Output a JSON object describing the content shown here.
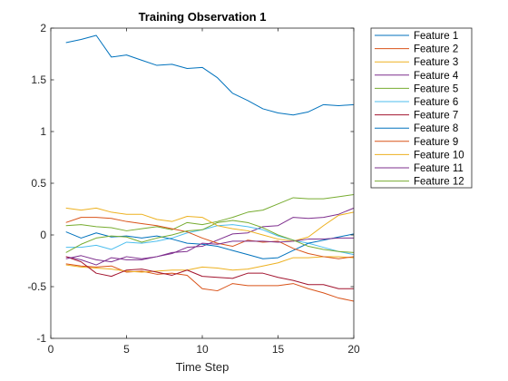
{
  "chart_data": {
    "type": "line",
    "title": "Training Observation 1",
    "xlabel": "Time Step",
    "ylabel": "",
    "xlim": [
      0,
      20
    ],
    "ylim": [
      -1,
      2
    ],
    "xticks": [
      0,
      5,
      10,
      15,
      20
    ],
    "yticks": [
      -1,
      -0.5,
      0,
      0.5,
      1,
      1.5,
      2
    ],
    "xtick_labels": [
      "0",
      "5",
      "10",
      "15",
      "20"
    ],
    "ytick_labels": [
      "-1",
      "-0.5",
      "0",
      "0.5",
      "1",
      "1.5",
      "2"
    ],
    "grid": false,
    "legend_position": "outside-right",
    "x": [
      1,
      2,
      3,
      4,
      5,
      6,
      7,
      8,
      9,
      10,
      11,
      12,
      13,
      14,
      15,
      16,
      17,
      18,
      19,
      20
    ],
    "series": [
      {
        "name": "Feature 1",
        "color": "#0072BD",
        "values": [
          1.86,
          1.89,
          1.93,
          1.72,
          1.74,
          1.69,
          1.64,
          1.65,
          1.61,
          1.62,
          1.52,
          1.37,
          1.3,
          1.22,
          1.18,
          1.16,
          1.19,
          1.26,
          1.25,
          1.26
        ]
      },
      {
        "name": "Feature 2",
        "color": "#D95319",
        "values": [
          -0.28,
          -0.3,
          -0.31,
          -0.3,
          -0.36,
          -0.35,
          -0.38,
          -0.37,
          -0.39,
          -0.52,
          -0.54,
          -0.47,
          -0.49,
          -0.49,
          -0.49,
          -0.47,
          -0.52,
          -0.56,
          -0.61,
          -0.64
        ]
      },
      {
        "name": "Feature 3",
        "color": "#EDB120",
        "values": [
          -0.29,
          -0.31,
          -0.32,
          -0.33,
          -0.35,
          -0.36,
          -0.35,
          -0.34,
          -0.34,
          -0.31,
          -0.32,
          -0.34,
          -0.33,
          -0.3,
          -0.27,
          -0.22,
          -0.22,
          -0.21,
          -0.21,
          -0.22
        ]
      },
      {
        "name": "Feature 4",
        "color": "#7E2F8E",
        "values": [
          -0.21,
          -0.24,
          -0.29,
          -0.22,
          -0.24,
          -0.24,
          -0.21,
          -0.18,
          -0.12,
          -0.11,
          -0.05,
          0.01,
          0.02,
          0.08,
          0.09,
          0.17,
          0.16,
          0.17,
          0.2,
          0.26
        ]
      },
      {
        "name": "Feature 5",
        "color": "#77AC30",
        "values": [
          0.09,
          0.1,
          0.08,
          0.07,
          0.04,
          0.06,
          0.08,
          0.05,
          0.12,
          0.1,
          0.13,
          0.17,
          0.22,
          0.24,
          0.3,
          0.36,
          0.35,
          0.35,
          0.37,
          0.39
        ]
      },
      {
        "name": "Feature 6",
        "color": "#4DBEEE",
        "values": [
          -0.12,
          -0.12,
          -0.1,
          -0.14,
          -0.07,
          -0.08,
          -0.06,
          -0.03,
          0.02,
          0.05,
          0.09,
          0.1,
          0.08,
          0.05,
          -0.01,
          -0.05,
          -0.08,
          -0.12,
          -0.16,
          -0.19
        ]
      },
      {
        "name": "Feature 7",
        "color": "#A2142F",
        "values": [
          -0.21,
          -0.26,
          -0.37,
          -0.4,
          -0.34,
          -0.33,
          -0.36,
          -0.39,
          -0.34,
          -0.4,
          -0.41,
          -0.42,
          -0.37,
          -0.37,
          -0.41,
          -0.44,
          -0.48,
          -0.48,
          -0.52,
          -0.52
        ]
      },
      {
        "name": "Feature 8",
        "color": "#0072BD",
        "values": [
          0.03,
          -0.03,
          0.02,
          -0.02,
          -0.01,
          -0.03,
          -0.01,
          -0.04,
          -0.08,
          -0.09,
          -0.11,
          -0.15,
          -0.19,
          -0.23,
          -0.22,
          -0.15,
          -0.08,
          -0.05,
          -0.02,
          0.01
        ]
      },
      {
        "name": "Feature 9",
        "color": "#D95319",
        "values": [
          0.12,
          0.17,
          0.17,
          0.16,
          0.13,
          0.11,
          0.09,
          0.06,
          0.03,
          -0.03,
          -0.08,
          -0.11,
          -0.05,
          -0.07,
          -0.06,
          -0.13,
          -0.18,
          -0.21,
          -0.23,
          -0.21
        ]
      },
      {
        "name": "Feature 10",
        "color": "#EDB120",
        "values": [
          0.26,
          0.24,
          0.26,
          0.22,
          0.2,
          0.2,
          0.15,
          0.13,
          0.18,
          0.17,
          0.09,
          0.06,
          0.04,
          0.0,
          -0.04,
          -0.06,
          -0.02,
          0.09,
          0.19,
          0.22
        ]
      },
      {
        "name": "Feature 11",
        "color": "#7E2F8E",
        "values": [
          -0.23,
          -0.2,
          -0.24,
          -0.26,
          -0.21,
          -0.23,
          -0.21,
          -0.17,
          -0.16,
          -0.08,
          -0.09,
          -0.06,
          -0.06,
          -0.06,
          -0.07,
          -0.06,
          -0.04,
          -0.04,
          -0.03,
          -0.03
        ]
      },
      {
        "name": "Feature 12",
        "color": "#77AC30",
        "values": [
          -0.17,
          -0.09,
          -0.03,
          -0.01,
          -0.02,
          -0.07,
          -0.03,
          0.0,
          0.04,
          0.05,
          0.12,
          0.14,
          0.12,
          0.07,
          0.0,
          -0.05,
          -0.11,
          -0.14,
          -0.16,
          -0.17
        ]
      }
    ]
  }
}
